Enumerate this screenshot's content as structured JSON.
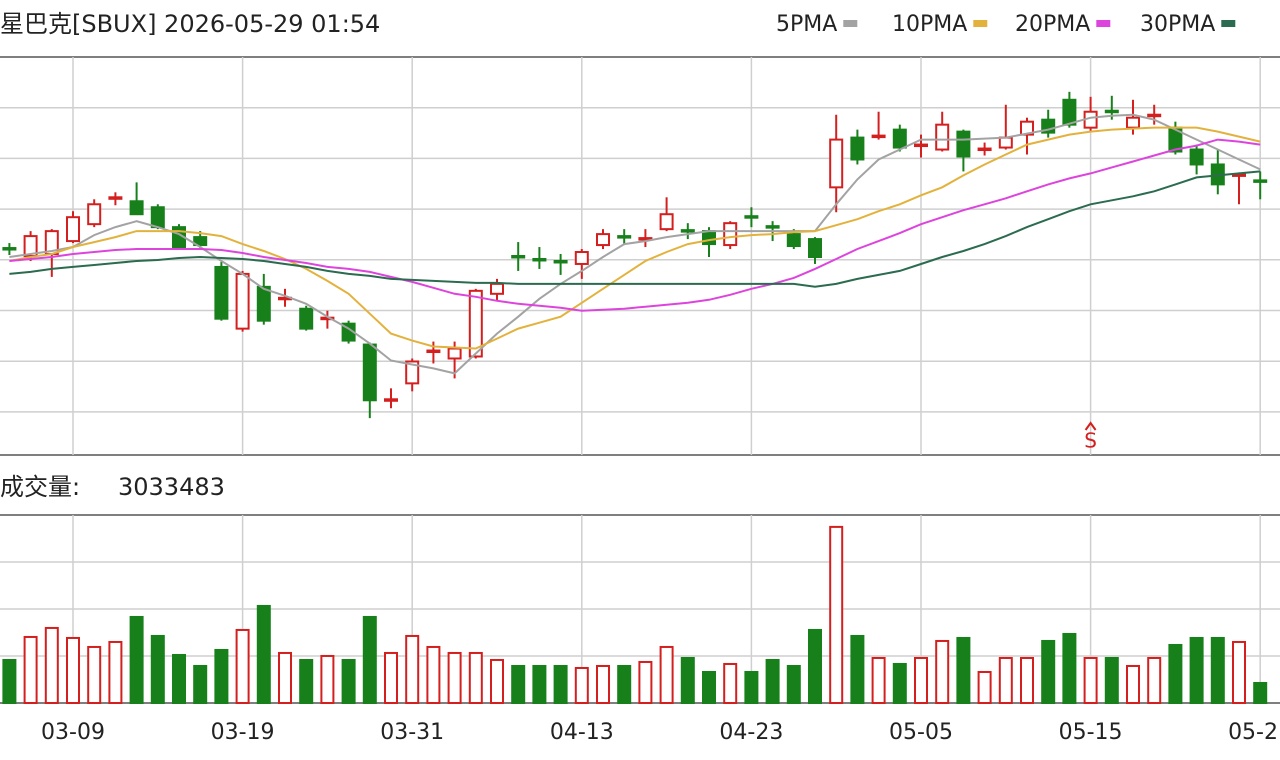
{
  "chart_data": {
    "type": "candlestick",
    "title": "星巴克[SBUX] 2026-05-29 01:54",
    "categories": [
      null,
      null,
      null,
      "03-09",
      null,
      null,
      null,
      null,
      null,
      null,
      null,
      "03-19",
      null,
      null,
      null,
      null,
      null,
      null,
      null,
      "03-31",
      null,
      null,
      null,
      null,
      null,
      null,
      null,
      "04-13",
      null,
      null,
      null,
      null,
      null,
      null,
      null,
      "04-23",
      null,
      null,
      null,
      null,
      null,
      null,
      null,
      "05-05",
      null,
      null,
      null,
      null,
      null,
      null,
      null,
      "05-15",
      null,
      null,
      null,
      null,
      null,
      null,
      null,
      "05-2"
    ],
    "open": [
      90.4,
      90.0,
      90.1,
      90.75,
      91.6,
      92.9,
      92.75,
      92.45,
      91.45,
      90.95,
      89.45,
      86.35,
      88.45,
      87.85,
      87.35,
      86.85,
      86.6,
      85.55,
      82.75,
      83.6,
      85.2,
      84.85,
      84.95,
      88.1,
      90.0,
      89.85,
      89.75,
      89.6,
      90.55,
      91.0,
      90.85,
      91.35,
      91.3,
      91.25,
      90.55,
      92.0,
      91.5,
      91.1,
      90.85,
      93.45,
      95.95,
      96.0,
      96.35,
      95.55,
      95.35,
      96.25,
      95.35,
      95.45,
      96.1,
      96.85,
      97.85,
      96.45,
      97.3,
      96.45,
      97.05,
      96.45,
      95.35,
      94.6,
      94.05,
      93.8
    ],
    "high": [
      90.65,
      91.25,
      91.35,
      92.25,
      92.85,
      93.2,
      93.7,
      92.6,
      91.6,
      91.25,
      89.7,
      89.25,
      89.1,
      88.35,
      87.5,
      87.25,
      86.75,
      85.65,
      83.35,
      84.85,
      85.7,
      85.7,
      88.35,
      88.85,
      90.7,
      90.45,
      90.1,
      90.35,
      91.35,
      91.35,
      91.35,
      92.95,
      91.65,
      91.45,
      91.75,
      92.45,
      91.75,
      91.35,
      90.95,
      97.1,
      96.35,
      97.25,
      96.6,
      96.1,
      97.25,
      96.35,
      95.7,
      97.6,
      96.95,
      97.35,
      98.25,
      98.0,
      98.05,
      97.85,
      97.6,
      96.75,
      95.6,
      95.35,
      94.2,
      94.25
    ],
    "low": [
      90.05,
      89.75,
      88.95,
      90.65,
      91.45,
      92.55,
      92.1,
      91.35,
      90.35,
      90.35,
      86.75,
      86.2,
      86.55,
      87.45,
      86.25,
      86.35,
      85.6,
      81.85,
      82.35,
      83.2,
      84.6,
      83.85,
      84.85,
      87.75,
      89.25,
      89.35,
      89.05,
      88.85,
      90.35,
      90.55,
      90.45,
      91.25,
      90.85,
      89.95,
      90.35,
      91.45,
      90.75,
      90.35,
      89.6,
      92.2,
      94.6,
      95.85,
      95.25,
      94.95,
      95.25,
      94.25,
      95.05,
      95.35,
      95.1,
      95.95,
      96.45,
      96.25,
      96.85,
      96.1,
      96.6,
      95.1,
      94.1,
      93.1,
      92.6,
      92.85
    ],
    "close": [
      90.35,
      91.0,
      91.25,
      91.95,
      92.6,
      92.95,
      92.1,
      91.45,
      90.45,
      90.55,
      86.85,
      89.1,
      86.75,
      87.9,
      86.35,
      86.9,
      85.75,
      82.75,
      82.8,
      84.7,
      85.25,
      85.35,
      88.25,
      88.6,
      89.95,
      89.8,
      89.7,
      90.2,
      91.1,
      90.95,
      90.9,
      92.1,
      91.25,
      90.6,
      91.65,
      91.95,
      91.45,
      90.5,
      89.95,
      95.85,
      94.85,
      96.05,
      95.45,
      95.6,
      96.6,
      95.0,
      95.4,
      95.95,
      96.75,
      96.2,
      96.6,
      97.25,
      97.25,
      96.95,
      97.1,
      95.25,
      94.6,
      93.6,
      94.1,
      93.75
    ],
    "ylim": [
      80,
      100
    ],
    "up_color": "#d41f1f",
    "down_color": "#17801a",
    "grid": true,
    "series": [
      {
        "name": "5PMA",
        "color": "#a3a3a3",
        "values": [
          89.95,
          90.1,
          90.25,
          90.45,
          91.05,
          91.45,
          91.75,
          91.45,
          91.1,
          90.45,
          89.75,
          89.1,
          88.35,
          88.0,
          87.6,
          86.95,
          86.35,
          85.6,
          84.75,
          84.55,
          84.35,
          84.1,
          85.1,
          86.1,
          86.95,
          87.85,
          88.6,
          89.25,
          89.95,
          90.6,
          90.75,
          90.95,
          91.1,
          91.25,
          91.25,
          91.25,
          91.25,
          91.25,
          91.25,
          92.6,
          93.85,
          94.85,
          95.35,
          95.85,
          95.85,
          95.85,
          95.9,
          95.95,
          96.15,
          96.35,
          96.65,
          96.95,
          97.05,
          97.1,
          96.85,
          96.35,
          95.85,
          95.35,
          94.85,
          94.35
        ]
      },
      {
        "name": "10PMA",
        "color": "#e3b23c",
        "values": [
          89.75,
          89.95,
          90.1,
          90.45,
          90.7,
          90.95,
          91.25,
          91.25,
          91.25,
          91.15,
          91.0,
          90.6,
          90.25,
          89.85,
          89.35,
          88.75,
          88.1,
          87.1,
          86.1,
          85.75,
          85.45,
          85.4,
          85.35,
          85.85,
          86.35,
          86.65,
          86.95,
          87.65,
          88.35,
          89.05,
          89.75,
          90.2,
          90.6,
          90.8,
          90.95,
          91.05,
          91.1,
          91.2,
          91.25,
          91.55,
          91.85,
          92.25,
          92.6,
          93.05,
          93.45,
          94.05,
          94.6,
          95.1,
          95.6,
          95.85,
          96.1,
          96.25,
          96.35,
          96.4,
          96.45,
          96.45,
          96.45,
          96.25,
          96.0,
          95.75
        ]
      },
      {
        "name": "20PMA",
        "color": "#dd44dd",
        "values": [
          89.75,
          89.85,
          89.95,
          90.1,
          90.2,
          90.3,
          90.35,
          90.35,
          90.35,
          90.35,
          90.3,
          90.15,
          89.95,
          89.8,
          89.65,
          89.45,
          89.35,
          89.2,
          88.95,
          88.7,
          88.4,
          88.1,
          87.95,
          87.75,
          87.6,
          87.5,
          87.4,
          87.25,
          87.3,
          87.35,
          87.45,
          87.55,
          87.65,
          87.8,
          88.05,
          88.35,
          88.6,
          88.9,
          89.35,
          89.85,
          90.35,
          90.75,
          91.15,
          91.6,
          91.95,
          92.3,
          92.6,
          92.9,
          93.25,
          93.6,
          93.9,
          94.15,
          94.45,
          94.75,
          95.05,
          95.35,
          95.55,
          95.85,
          95.75,
          95.6
        ]
      },
      {
        "name": "30PMA",
        "color": "#2b6b4f",
        "values": [
          89.1,
          89.2,
          89.35,
          89.45,
          89.55,
          89.65,
          89.75,
          89.8,
          89.9,
          89.95,
          89.9,
          89.85,
          89.75,
          89.6,
          89.45,
          89.25,
          89.1,
          89.0,
          88.85,
          88.8,
          88.75,
          88.7,
          88.65,
          88.65,
          88.6,
          88.6,
          88.6,
          88.6,
          88.6,
          88.6,
          88.6,
          88.6,
          88.6,
          88.6,
          88.6,
          88.6,
          88.6,
          88.6,
          88.45,
          88.6,
          88.85,
          89.05,
          89.25,
          89.6,
          89.95,
          90.25,
          90.6,
          91.0,
          91.45,
          91.85,
          92.25,
          92.6,
          92.8,
          93.0,
          93.25,
          93.6,
          93.95,
          94.05,
          94.15,
          94.25
        ]
      }
    ],
    "signal": {
      "label": "S",
      "category_index": 51
    },
    "volume": {
      "label": "成交量:",
      "ylim": [
        0,
        28500000
      ],
      "values": [
        6522000,
        10010000,
        11376000,
        9859000,
        8494000,
        9252000,
        13044000,
        10162000,
        7280000,
        5612000,
        8039000,
        11072000,
        14712000,
        7584000,
        6522000,
        7129000,
        6522000,
        13044000,
        7584000,
        10162000,
        8494000,
        7584000,
        7584000,
        6522000,
        5612000,
        5612000,
        5612000,
        5309000,
        5612000,
        5612000,
        6219000,
        8494000,
        6825000,
        4702000,
        5915000,
        4702000,
        6522000,
        5612000,
        11072000,
        26695000,
        10162000,
        6825000,
        5915000,
        6825000,
        9404000,
        9859000,
        4702000,
        6825000,
        6825000,
        9404000,
        10466000,
        6825000,
        6825000,
        5612000,
        6825000,
        8797000,
        9859000,
        9859000,
        9252000,
        3033483
      ]
    }
  }
}
